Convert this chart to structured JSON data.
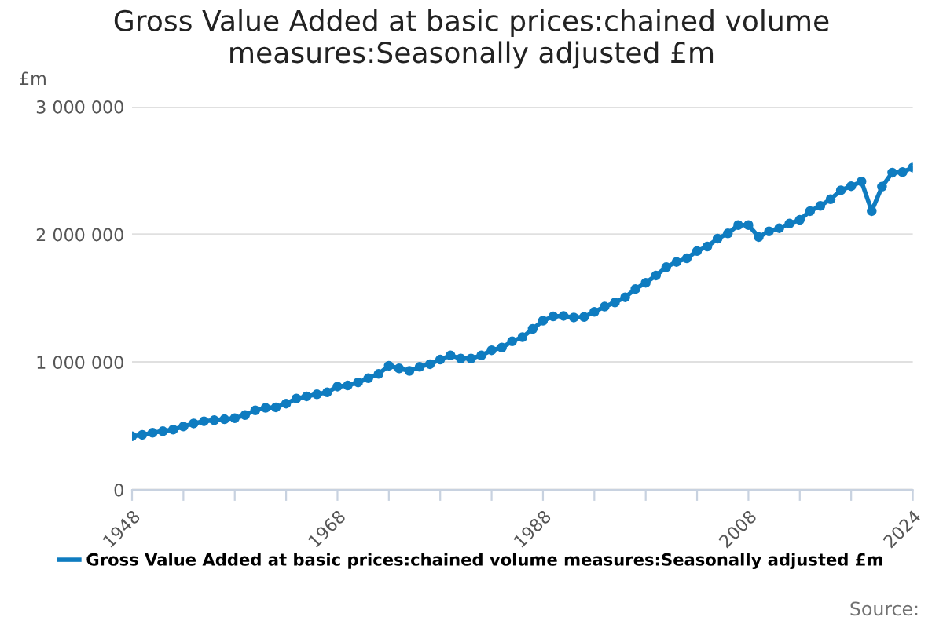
{
  "chart_data": {
    "type": "line",
    "title": "Gross Value Added at basic prices:chained volume measures:Seasonally adjusted £m",
    "ylabel": "£m",
    "x": [
      1948,
      1949,
      1950,
      1951,
      1952,
      1953,
      1954,
      1955,
      1956,
      1957,
      1958,
      1959,
      1960,
      1961,
      1962,
      1963,
      1964,
      1965,
      1966,
      1967,
      1968,
      1969,
      1970,
      1971,
      1972,
      1973,
      1974,
      1975,
      1976,
      1977,
      1978,
      1979,
      1980,
      1981,
      1982,
      1983,
      1984,
      1985,
      1986,
      1987,
      1988,
      1989,
      1990,
      1991,
      1992,
      1993,
      1994,
      1995,
      1996,
      1997,
      1998,
      1999,
      2000,
      2001,
      2002,
      2003,
      2004,
      2005,
      2006,
      2007,
      2008,
      2009,
      2010,
      2011,
      2012,
      2013,
      2014,
      2015,
      2016,
      2017,
      2018,
      2019,
      2020,
      2021,
      2022,
      2023,
      2024
    ],
    "series": [
      {
        "name": "Gross Value Added at basic prices:chained volume measures:Seasonally adjusted £m",
        "color": "#0f7cc0",
        "values": [
          419000,
          431000,
          447000,
          459000,
          472000,
          496000,
          520000,
          537000,
          545000,
          553000,
          561000,
          585000,
          622000,
          642000,
          646000,
          675000,
          715000,
          732000,
          748000,
          764000,
          809000,
          817000,
          841000,
          874000,
          908000,
          972000,
          951000,
          931000,
          963000,
          984000,
          1020000,
          1053000,
          1028000,
          1028000,
          1053000,
          1093000,
          1114000,
          1163000,
          1195000,
          1260000,
          1325000,
          1358000,
          1362000,
          1350000,
          1354000,
          1394000,
          1435000,
          1467000,
          1508000,
          1573000,
          1622000,
          1679000,
          1744000,
          1785000,
          1813000,
          1870000,
          1906000,
          1967000,
          2008000,
          2073000,
          2073000,
          1980000,
          2024000,
          2049000,
          2085000,
          2114000,
          2183000,
          2224000,
          2276000,
          2346000,
          2378000,
          2415000,
          2183000,
          2374000,
          2484000,
          2488000,
          2524000
        ]
      }
    ],
    "xlim": [
      1948,
      2024
    ],
    "xticks": [
      1948,
      {
        "value": 1953,
        "label": null
      },
      {
        "value": 1958,
        "label": null
      },
      {
        "value": 1963,
        "label": null
      },
      1968,
      {
        "value": 1973,
        "label": null
      },
      {
        "value": 1978,
        "label": null
      },
      {
        "value": 1983,
        "label": null
      },
      1988,
      {
        "value": 1993,
        "label": null
      },
      {
        "value": 1998,
        "label": null
      },
      {
        "value": 2003,
        "label": null
      },
      2008,
      {
        "value": 2013,
        "label": null
      },
      {
        "value": 2018,
        "label": null
      },
      2024
    ],
    "ylim": [
      0,
      3000000
    ],
    "yticks": [
      0,
      {
        "value": 1000000,
        "label": "1 000 000"
      },
      {
        "value": 2000000,
        "label": "2 000 000"
      },
      {
        "value": 3000000,
        "label": "3 000 000"
      }
    ],
    "grid": "y",
    "legend": "bottom",
    "marker": "circle",
    "line_style": "solid",
    "annotations": [
      "Source:"
    ]
  }
}
